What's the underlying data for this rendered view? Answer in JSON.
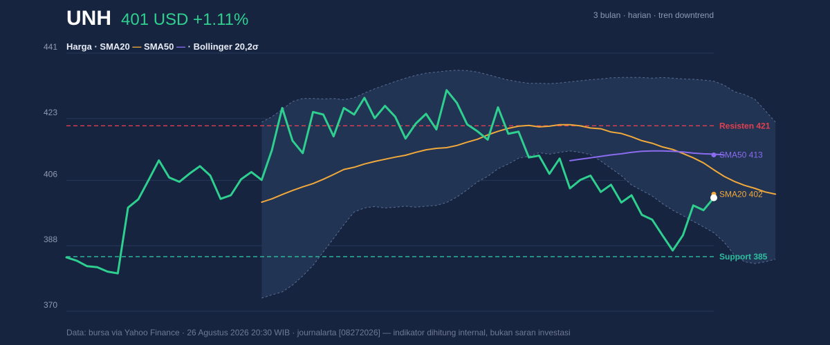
{
  "header": {
    "ticker": "UNH",
    "price_text": "401 USD +1.11%",
    "subtitle": "3 bulan · harian · tren downtrend"
  },
  "legend": {
    "price": "Harga",
    "sep1": " · ",
    "sma20": "SMA20",
    "sma20_mark": " —",
    "sep2": " ",
    "sma50": "SMA50",
    "sma50_mark": " —",
    "sep3": " · ",
    "bollinger": "Bollinger 20,2σ"
  },
  "footer": "Data: bursa via Yahoo Finance · 26 Agustus 2026 20:30 WIB · journalarta [08272026] — indikator dihitung internal, bukan saran investasi",
  "colors": {
    "background": "#172440",
    "price": "#2fcf8f",
    "sma20": "#f2a93b",
    "sma50": "#8b6cf0",
    "resistance": "#e0404f",
    "support": "#2fbfa0",
    "band_fill": "#223453",
    "band_edge": "#5b6f95",
    "grid": "#26385a"
  },
  "chart_data": {
    "type": "line",
    "ylim": [
      370,
      441
    ],
    "yticks": [
      441,
      423,
      406,
      388,
      370
    ],
    "grid": true,
    "legend_position": "top-left",
    "series": [
      {
        "name": "Harga",
        "values": [
          384.8,
          383.9,
          382.4,
          382.1,
          380.9,
          380.4,
          398.5,
          400.8,
          406.1,
          411.5,
          406.8,
          405.6,
          407.9,
          409.9,
          407.3,
          400.9,
          401.9,
          406.3,
          408.3,
          406.1,
          414.3,
          425.9,
          416.9,
          413.5,
          424.8,
          424.1,
          418.1,
          425.9,
          424.1,
          428.7,
          423.1,
          426.5,
          423.5,
          417.5,
          421.6,
          424.3,
          420.0,
          430.8,
          427.3,
          421.4,
          419.5,
          417.2,
          426.1,
          418.8,
          419.4,
          412.3,
          412.8,
          407.8,
          412.0,
          403.8,
          406.1,
          407.3,
          402.8,
          404.8,
          399.9,
          401.9,
          396.5,
          395.2,
          390.9,
          386.7,
          390.9,
          399.1,
          397.8,
          401.2
        ]
      },
      {
        "name": "SMA20",
        "start_index": 19,
        "values": [
          400.0,
          400.9,
          402.1,
          403.2,
          404.2,
          405.1,
          406.3,
          407.6,
          409.0,
          409.6,
          410.5,
          411.2,
          411.8,
          412.4,
          412.9,
          413.7,
          414.4,
          414.8,
          415.0,
          415.6,
          416.5,
          417.3,
          418.5,
          419.5,
          420.3,
          420.9,
          421.1,
          420.7,
          420.9,
          421.3,
          421.3,
          421.0,
          420.4,
          420.2,
          419.3,
          418.9,
          418.0,
          416.9,
          416.2,
          415.2,
          414.5,
          413.4,
          412.2,
          410.8,
          408.9,
          407.1,
          405.7,
          404.6,
          403.8,
          402.8,
          402.2
        ]
      },
      {
        "name": "SMA50",
        "start_index": 49,
        "values": [
          411.4,
          411.8,
          412.2,
          412.6,
          413.0,
          413.3,
          413.7,
          414.0,
          414.1,
          414.1,
          414.0,
          413.8,
          413.5,
          413.3,
          413.2,
          413.0
        ]
      }
    ],
    "bollinger": {
      "label": "Bollinger 20,2σ",
      "start_index": 19,
      "upper": [
        422.0,
        423.5,
        425.5,
        427.7,
        428.5,
        428.5,
        428.4,
        428.5,
        428.2,
        428.7,
        430.0,
        431.2,
        432.2,
        433.2,
        434.1,
        434.9,
        435.5,
        435.8,
        436.1,
        436.3,
        436.2,
        435.8,
        435.1,
        434.3,
        433.6,
        433.1,
        432.7,
        432.7,
        432.6,
        432.8,
        433.1,
        433.4,
        433.7,
        433.9,
        434.2,
        434.3,
        434.3,
        434.3,
        434.1,
        434.3,
        434.1,
        433.9,
        433.8,
        433.6,
        433.3,
        432.2,
        430.4,
        429.6,
        428.3,
        425.2,
        422.0
      ],
      "lower": [
        373.6,
        374.5,
        375.3,
        377.2,
        379.7,
        382.6,
        386.3,
        390.0,
        393.8,
        397.3,
        398.4,
        398.8,
        398.4,
        398.6,
        398.9,
        398.6,
        398.9,
        399.1,
        399.9,
        401.4,
        403.4,
        405.6,
        407.1,
        409.2,
        410.5,
        412.1,
        412.6,
        413.6,
        413.2,
        413.7,
        414.1,
        413.7,
        413.1,
        411.3,
        409.3,
        407.3,
        404.7,
        403.2,
        401.7,
        399.6,
        397.8,
        396.3,
        394.7,
        393.2,
        391.6,
        389.0,
        385.5,
        383.6,
        383.1,
        383.6,
        384.3
      ]
    },
    "levels": [
      {
        "name": "Resisten 421",
        "value": 421
      },
      {
        "name": "Support 385",
        "value": 385
      }
    ],
    "end_labels": {
      "sma50": "SMA50 413",
      "sma20": "SMA20 402"
    }
  }
}
